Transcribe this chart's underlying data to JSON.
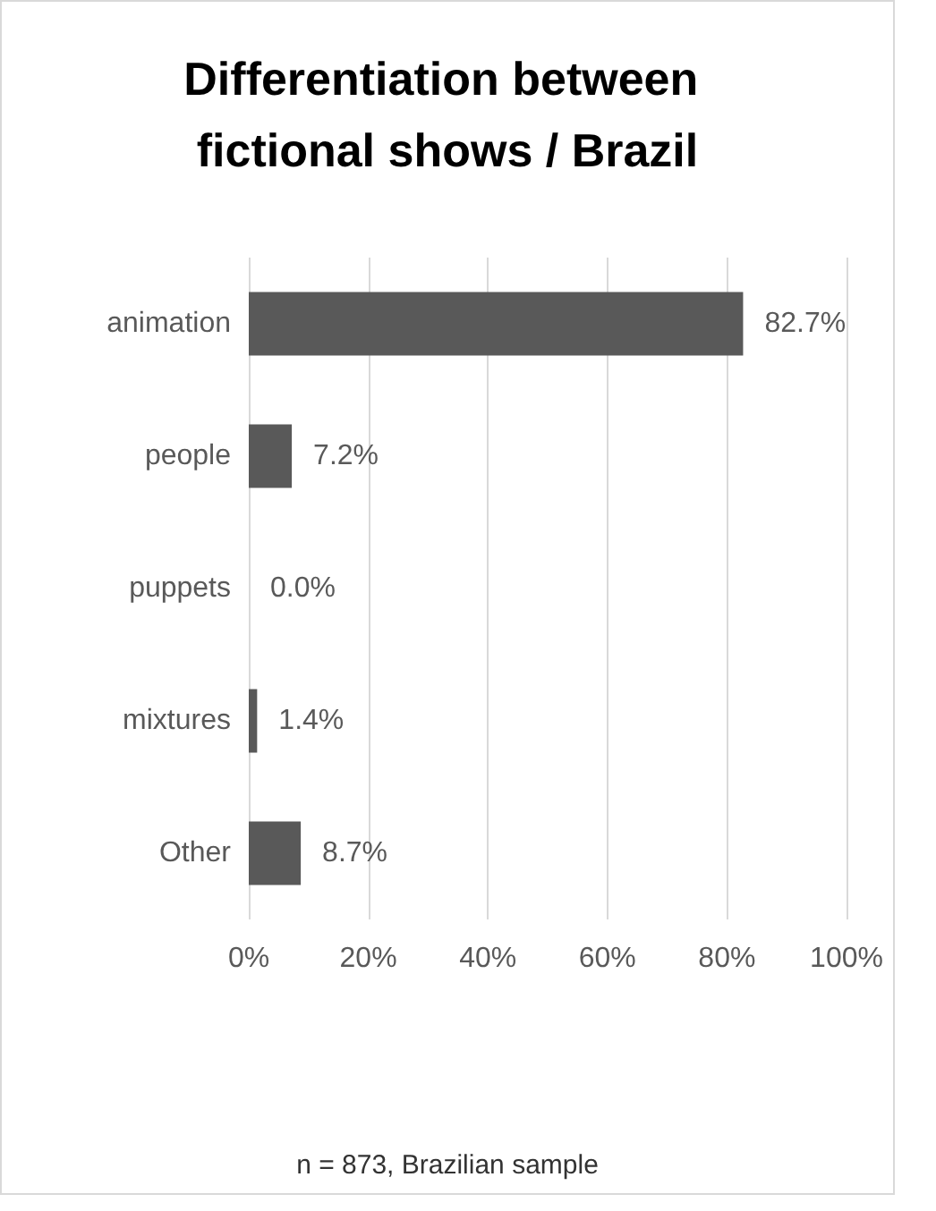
{
  "chart_data": {
    "type": "bar",
    "orientation": "horizontal",
    "title": "Differentiation between fictional shows / Brazil",
    "categories": [
      "animation",
      "people",
      "puppets",
      "mixtures",
      "Other"
    ],
    "values": [
      82.7,
      7.2,
      0.0,
      1.4,
      8.7
    ],
    "value_labels": [
      "82.7%",
      "7.2%",
      "0.0%",
      "1.4%",
      "8.7%"
    ],
    "color": "#595959",
    "xlim": [
      0,
      100
    ],
    "xticks": [
      {
        "value": 0,
        "label": "0%"
      },
      {
        "value": 20,
        "label": "20%"
      },
      {
        "value": 40,
        "label": "40%"
      },
      {
        "value": 60,
        "label": "60%"
      },
      {
        "value": 80,
        "label": "80%"
      },
      {
        "value": 100,
        "label": "100%"
      }
    ],
    "grid": "x",
    "annotations": [
      "n = 873, Brazilian sample"
    ]
  }
}
